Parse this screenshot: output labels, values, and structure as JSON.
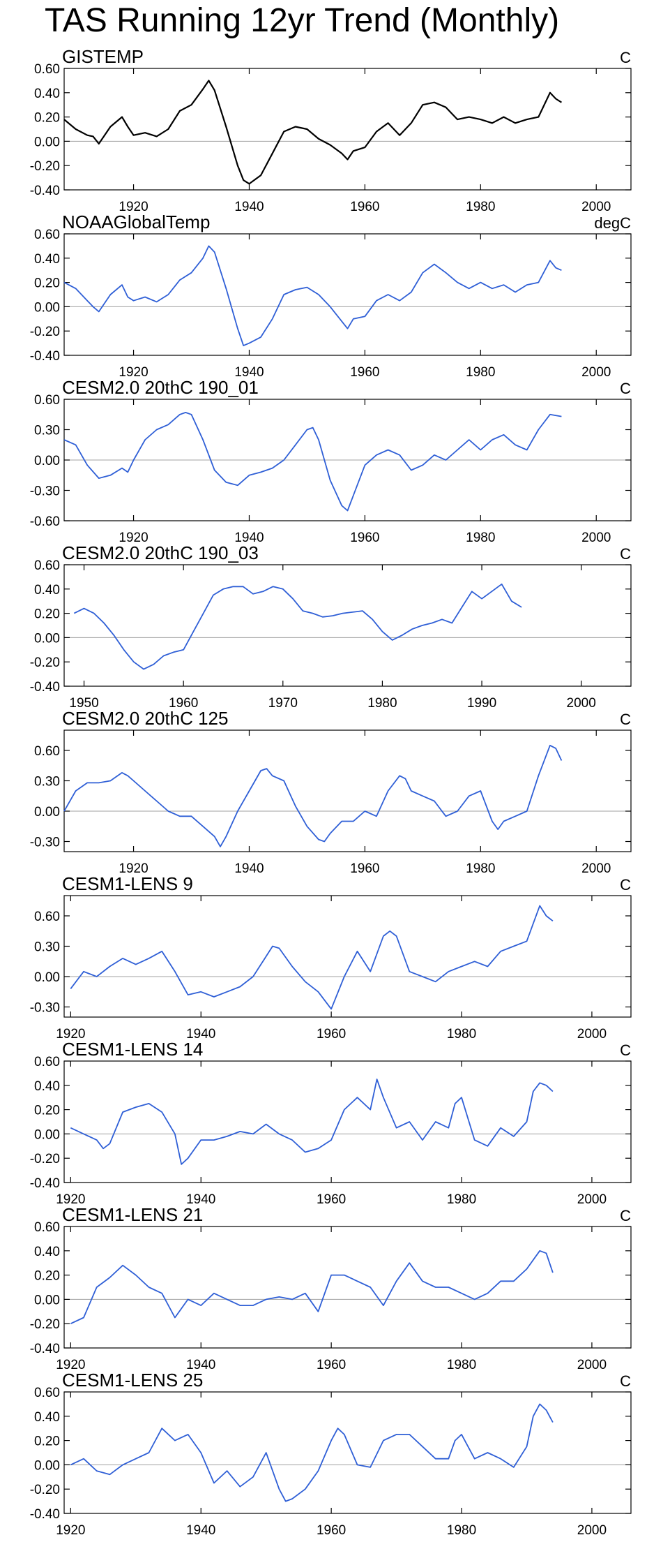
{
  "title": "TAS Running 12yr Trend (Monthly)",
  "colors": {
    "observed": "#000000",
    "model": "#2f5fd6",
    "zero_line": "#a0a0a0"
  },
  "chart_data": [
    {
      "type": "line",
      "title": "GISTEMP",
      "units": "C",
      "color": "observed",
      "xlim": [
        1908,
        2006
      ],
      "ylim": [
        -0.4,
        0.6
      ],
      "yticks": [
        -0.4,
        -0.2,
        0.0,
        0.2,
        0.4,
        0.6
      ],
      "ytick_labels": [
        "-0.40",
        "-0.20",
        "0.00",
        "0.20",
        "0.40",
        "0.60"
      ],
      "xticks": [
        1920,
        1940,
        1960,
        1980,
        2000
      ],
      "x": [
        1908,
        1910,
        1912,
        1913,
        1914,
        1916,
        1918,
        1919,
        1920,
        1922,
        1924,
        1926,
        1928,
        1930,
        1932,
        1933,
        1934,
        1936,
        1938,
        1939,
        1940,
        1942,
        1944,
        1946,
        1948,
        1950,
        1952,
        1954,
        1956,
        1957,
        1958,
        1960,
        1962,
        1964,
        1966,
        1968,
        1970,
        1972,
        1974,
        1976,
        1978,
        1980,
        1982,
        1984,
        1986,
        1988,
        1990,
        1992,
        1993,
        1994
      ],
      "y": [
        0.18,
        0.1,
        0.05,
        0.04,
        -0.02,
        0.12,
        0.2,
        0.12,
        0.05,
        0.07,
        0.04,
        0.1,
        0.25,
        0.3,
        0.43,
        0.5,
        0.42,
        0.12,
        -0.2,
        -0.32,
        -0.35,
        -0.28,
        -0.1,
        0.08,
        0.12,
        0.1,
        0.02,
        -0.03,
        -0.1,
        -0.15,
        -0.08,
        -0.05,
        0.08,
        0.15,
        0.05,
        0.15,
        0.3,
        0.32,
        0.28,
        0.18,
        0.2,
        0.18,
        0.15,
        0.2,
        0.15,
        0.18,
        0.2,
        0.4,
        0.35,
        0.32
      ]
    },
    {
      "type": "line",
      "title": "NOAAGlobalTemp",
      "units": "degC",
      "color": "model",
      "xlim": [
        1908,
        2006
      ],
      "ylim": [
        -0.4,
        0.6
      ],
      "yticks": [
        -0.4,
        -0.2,
        0.0,
        0.2,
        0.4,
        0.6
      ],
      "ytick_labels": [
        "-0.40",
        "-0.20",
        "0.00",
        "0.20",
        "0.40",
        "0.60"
      ],
      "xticks": [
        1920,
        1940,
        1960,
        1980,
        2000
      ],
      "x": [
        1908,
        1910,
        1912,
        1913,
        1914,
        1916,
        1918,
        1919,
        1920,
        1922,
        1924,
        1926,
        1928,
        1930,
        1932,
        1933,
        1934,
        1936,
        1938,
        1939,
        1940,
        1942,
        1944,
        1946,
        1948,
        1950,
        1952,
        1954,
        1956,
        1957,
        1958,
        1960,
        1962,
        1964,
        1966,
        1968,
        1970,
        1972,
        1974,
        1976,
        1978,
        1980,
        1982,
        1984,
        1986,
        1988,
        1990,
        1992,
        1993,
        1994
      ],
      "y": [
        0.2,
        0.15,
        0.05,
        0.0,
        -0.04,
        0.1,
        0.18,
        0.08,
        0.05,
        0.08,
        0.04,
        0.1,
        0.22,
        0.28,
        0.4,
        0.5,
        0.45,
        0.15,
        -0.18,
        -0.32,
        -0.3,
        -0.25,
        -0.1,
        0.1,
        0.14,
        0.16,
        0.1,
        0.0,
        -0.12,
        -0.18,
        -0.1,
        -0.08,
        0.05,
        0.1,
        0.05,
        0.12,
        0.28,
        0.35,
        0.28,
        0.2,
        0.15,
        0.2,
        0.15,
        0.18,
        0.12,
        0.18,
        0.2,
        0.38,
        0.32,
        0.3
      ]
    },
    {
      "type": "line",
      "title": "CESM2.0 20thC 190_01",
      "units": "C",
      "color": "model",
      "xlim": [
        1908,
        2006
      ],
      "ylim": [
        -0.6,
        0.6
      ],
      "yticks": [
        -0.6,
        -0.3,
        0.0,
        0.3,
        0.6
      ],
      "ytick_labels": [
        "-0.60",
        "-0.30",
        "0.00",
        "0.30",
        "0.60"
      ],
      "xticks": [
        1920,
        1940,
        1960,
        1980,
        2000
      ],
      "x": [
        1908,
        1910,
        1912,
        1914,
        1916,
        1918,
        1919,
        1920,
        1922,
        1924,
        1926,
        1928,
        1929,
        1930,
        1932,
        1934,
        1936,
        1938,
        1940,
        1942,
        1944,
        1946,
        1948,
        1950,
        1951,
        1952,
        1954,
        1956,
        1957,
        1958,
        1960,
        1962,
        1964,
        1966,
        1968,
        1970,
        1972,
        1974,
        1976,
        1978,
        1980,
        1982,
        1984,
        1986,
        1988,
        1990,
        1992,
        1994
      ],
      "y": [
        0.2,
        0.15,
        -0.05,
        -0.18,
        -0.15,
        -0.08,
        -0.12,
        0.0,
        0.2,
        0.3,
        0.35,
        0.45,
        0.47,
        0.45,
        0.2,
        -0.1,
        -0.22,
        -0.25,
        -0.15,
        -0.12,
        -0.08,
        0.0,
        0.15,
        0.3,
        0.32,
        0.2,
        -0.2,
        -0.45,
        -0.5,
        -0.35,
        -0.05,
        0.05,
        0.1,
        0.05,
        -0.1,
        -0.05,
        0.05,
        0.0,
        0.1,
        0.2,
        0.1,
        0.2,
        0.25,
        0.15,
        0.1,
        0.3,
        0.45,
        0.43
      ]
    },
    {
      "type": "line",
      "title": "CESM2.0 20thC 190_03",
      "units": "C",
      "color": "model",
      "xlim": [
        1948,
        2005
      ],
      "ylim": [
        -0.4,
        0.6
      ],
      "yticks": [
        -0.4,
        -0.2,
        0.0,
        0.2,
        0.4,
        0.6
      ],
      "ytick_labels": [
        "-0.40",
        "-0.20",
        "0.00",
        "0.20",
        "0.40",
        "0.60"
      ],
      "xticks": [
        1950,
        1960,
        1970,
        1980,
        1990,
        2000
      ],
      "x": [
        1949,
        1950,
        1951,
        1952,
        1953,
        1954,
        1955,
        1956,
        1957,
        1958,
        1959,
        1960,
        1961,
        1962,
        1963,
        1964,
        1965,
        1966,
        1967,
        1968,
        1969,
        1970,
        1971,
        1972,
        1973,
        1974,
        1975,
        1976,
        1977,
        1978,
        1979,
        1980,
        1981,
        1982,
        1983,
        1984,
        1985,
        1986,
        1987,
        1988,
        1989,
        1990,
        1991,
        1992,
        1993,
        1994
      ],
      "y": [
        0.2,
        0.24,
        0.2,
        0.12,
        0.02,
        -0.1,
        -0.2,
        -0.26,
        -0.22,
        -0.15,
        -0.12,
        -0.1,
        0.05,
        0.2,
        0.35,
        0.4,
        0.42,
        0.42,
        0.36,
        0.38,
        0.42,
        0.4,
        0.32,
        0.22,
        0.2,
        0.17,
        0.18,
        0.2,
        0.21,
        0.22,
        0.15,
        0.05,
        -0.02,
        0.02,
        0.07,
        0.1,
        0.12,
        0.15,
        0.12,
        0.25,
        0.38,
        0.32,
        0.38,
        0.44,
        0.3,
        0.25
      ]
    },
    {
      "type": "line",
      "title": "CESM2.0 20thC 125",
      "units": "C",
      "color": "model",
      "xlim": [
        1908,
        2006
      ],
      "ylim": [
        -0.4,
        0.8
      ],
      "yticks": [
        -0.3,
        0.0,
        0.3,
        0.6
      ],
      "ytick_labels": [
        "-0.30",
        "0.00",
        "0.30",
        "0.60"
      ],
      "xticks": [
        1920,
        1940,
        1960,
        1980,
        2000
      ],
      "x": [
        1908,
        1910,
        1912,
        1914,
        1916,
        1918,
        1919,
        1920,
        1922,
        1924,
        1926,
        1928,
        1930,
        1932,
        1934,
        1935,
        1936,
        1938,
        1940,
        1942,
        1943,
        1944,
        1946,
        1948,
        1950,
        1952,
        1953,
        1954,
        1956,
        1958,
        1960,
        1962,
        1964,
        1966,
        1967,
        1968,
        1970,
        1972,
        1974,
        1976,
        1978,
        1980,
        1982,
        1983,
        1984,
        1986,
        1988,
        1990,
        1992,
        1993,
        1994
      ],
      "y": [
        0.0,
        0.2,
        0.28,
        0.28,
        0.3,
        0.38,
        0.35,
        0.3,
        0.2,
        0.1,
        0.0,
        -0.05,
        -0.05,
        -0.15,
        -0.25,
        -0.35,
        -0.25,
        0.0,
        0.2,
        0.4,
        0.42,
        0.35,
        0.3,
        0.05,
        -0.15,
        -0.28,
        -0.3,
        -0.22,
        -0.1,
        -0.1,
        0.0,
        -0.05,
        0.2,
        0.35,
        0.32,
        0.2,
        0.15,
        0.1,
        -0.05,
        0.0,
        0.15,
        0.2,
        -0.1,
        -0.18,
        -0.1,
        -0.05,
        0.0,
        0.35,
        0.65,
        0.62,
        0.5
      ]
    },
    {
      "type": "line",
      "title": "CESM1-LENS 9",
      "units": "C",
      "color": "model",
      "xlim": [
        1919,
        2006
      ],
      "ylim": [
        -0.4,
        0.8
      ],
      "yticks": [
        -0.3,
        0.0,
        0.3,
        0.6
      ],
      "ytick_labels": [
        "-0.30",
        "0.00",
        "0.30",
        "0.60"
      ],
      "xticks": [
        1920,
        1940,
        1960,
        1980,
        2000
      ],
      "x": [
        1920,
        1922,
        1924,
        1926,
        1928,
        1930,
        1932,
        1934,
        1936,
        1938,
        1940,
        1942,
        1944,
        1946,
        1948,
        1950,
        1951,
        1952,
        1954,
        1956,
        1958,
        1960,
        1962,
        1964,
        1966,
        1968,
        1969,
        1970,
        1972,
        1974,
        1976,
        1978,
        1980,
        1982,
        1984,
        1986,
        1988,
        1990,
        1992,
        1993,
        1994
      ],
      "y": [
        -0.12,
        0.05,
        0.0,
        0.1,
        0.18,
        0.12,
        0.18,
        0.25,
        0.05,
        -0.18,
        -0.15,
        -0.2,
        -0.15,
        -0.1,
        0.0,
        0.2,
        0.3,
        0.28,
        0.1,
        -0.05,
        -0.15,
        -0.32,
        0.0,
        0.25,
        0.05,
        0.4,
        0.45,
        0.4,
        0.05,
        0.0,
        -0.05,
        0.05,
        0.1,
        0.15,
        0.1,
        0.25,
        0.3,
        0.35,
        0.7,
        0.6,
        0.55
      ]
    },
    {
      "type": "line",
      "title": "CESM1-LENS 14",
      "units": "C",
      "color": "model",
      "xlim": [
        1919,
        2006
      ],
      "ylim": [
        -0.4,
        0.6
      ],
      "yticks": [
        -0.4,
        -0.2,
        0.0,
        0.2,
        0.4,
        0.6
      ],
      "ytick_labels": [
        "-0.40",
        "-0.20",
        "0.00",
        "0.20",
        "0.40",
        "0.60"
      ],
      "xticks": [
        1920,
        1940,
        1960,
        1980,
        2000
      ],
      "x": [
        1920,
        1922,
        1924,
        1925,
        1926,
        1928,
        1930,
        1932,
        1934,
        1936,
        1937,
        1938,
        1940,
        1942,
        1944,
        1946,
        1948,
        1950,
        1952,
        1954,
        1956,
        1958,
        1960,
        1962,
        1964,
        1966,
        1967,
        1968,
        1970,
        1972,
        1974,
        1976,
        1978,
        1979,
        1980,
        1982,
        1984,
        1986,
        1988,
        1990,
        1991,
        1992,
        1993,
        1994
      ],
      "y": [
        0.05,
        0.0,
        -0.05,
        -0.12,
        -0.08,
        0.18,
        0.22,
        0.25,
        0.18,
        0.0,
        -0.25,
        -0.2,
        -0.05,
        -0.05,
        -0.02,
        0.02,
        0.0,
        0.08,
        0.0,
        -0.05,
        -0.15,
        -0.12,
        -0.05,
        0.2,
        0.3,
        0.2,
        0.45,
        0.3,
        0.05,
        0.1,
        -0.05,
        0.1,
        0.05,
        0.25,
        0.3,
        -0.05,
        -0.1,
        0.05,
        -0.02,
        0.1,
        0.35,
        0.42,
        0.4,
        0.35
      ]
    },
    {
      "type": "line",
      "title": "CESM1-LENS 21",
      "units": "C",
      "color": "model",
      "xlim": [
        1919,
        2006
      ],
      "ylim": [
        -0.4,
        0.6
      ],
      "yticks": [
        -0.4,
        -0.2,
        0.0,
        0.2,
        0.4,
        0.6
      ],
      "ytick_labels": [
        "-0.40",
        "-0.20",
        "0.00",
        "0.20",
        "0.40",
        "0.60"
      ],
      "xticks": [
        1920,
        1940,
        1960,
        1980,
        2000
      ],
      "x": [
        1920,
        1922,
        1924,
        1926,
        1928,
        1930,
        1932,
        1934,
        1936,
        1938,
        1940,
        1942,
        1944,
        1946,
        1948,
        1950,
        1952,
        1954,
        1956,
        1958,
        1960,
        1962,
        1964,
        1966,
        1968,
        1970,
        1972,
        1974,
        1976,
        1978,
        1980,
        1982,
        1984,
        1986,
        1988,
        1990,
        1992,
        1993,
        1994
      ],
      "y": [
        -0.2,
        -0.15,
        0.1,
        0.18,
        0.28,
        0.2,
        0.1,
        0.05,
        -0.15,
        0.0,
        -0.05,
        0.05,
        0.0,
        -0.05,
        -0.05,
        0.0,
        0.02,
        0.0,
        0.05,
        -0.1,
        0.2,
        0.2,
        0.15,
        0.1,
        -0.05,
        0.15,
        0.3,
        0.15,
        0.1,
        0.1,
        0.05,
        0.0,
        0.05,
        0.15,
        0.15,
        0.25,
        0.4,
        0.38,
        0.22
      ]
    },
    {
      "type": "line",
      "title": "CESM1-LENS 25",
      "units": "C",
      "color": "model",
      "xlim": [
        1919,
        2006
      ],
      "ylim": [
        -0.4,
        0.6
      ],
      "yticks": [
        -0.4,
        -0.2,
        0.0,
        0.2,
        0.4,
        0.6
      ],
      "ytick_labels": [
        "-0.40",
        "-0.20",
        "0.00",
        "0.20",
        "0.40",
        "0.60"
      ],
      "xticks": [
        1920,
        1940,
        1960,
        1980,
        2000
      ],
      "x": [
        1920,
        1922,
        1924,
        1926,
        1928,
        1930,
        1932,
        1934,
        1936,
        1938,
        1940,
        1942,
        1944,
        1946,
        1948,
        1950,
        1952,
        1953,
        1954,
        1956,
        1958,
        1960,
        1961,
        1962,
        1964,
        1966,
        1968,
        1970,
        1972,
        1974,
        1976,
        1978,
        1979,
        1980,
        1982,
        1984,
        1986,
        1988,
        1990,
        1991,
        1992,
        1993,
        1994
      ],
      "y": [
        0.0,
        0.05,
        -0.05,
        -0.08,
        0.0,
        0.05,
        0.1,
        0.3,
        0.2,
        0.25,
        0.1,
        -0.15,
        -0.05,
        -0.18,
        -0.1,
        0.1,
        -0.2,
        -0.3,
        -0.28,
        -0.2,
        -0.05,
        0.2,
        0.3,
        0.25,
        0.0,
        -0.02,
        0.2,
        0.25,
        0.25,
        0.15,
        0.05,
        0.05,
        0.2,
        0.25,
        0.05,
        0.1,
        0.05,
        -0.02,
        0.15,
        0.4,
        0.5,
        0.45,
        0.35
      ]
    }
  ]
}
